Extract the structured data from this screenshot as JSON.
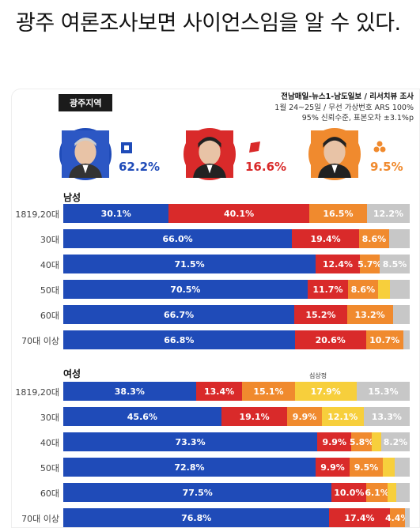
{
  "post": {
    "title": "광주 여론조사보면 사이언스임을 알 수 있다."
  },
  "graphic": {
    "region": "광주지역",
    "source_lines": [
      "전남매일-뉴스1-남도일보 / 리서치뷰 조사",
      "1월 24~25일 / 무선 가상번호 ARS 100%",
      "95% 신뢰수준, 표본오차 ±3.1%p"
    ],
    "candidates": [
      {
        "pct": "62.2%",
        "color": "#1f4bb8",
        "icon": "democratic-party-icon"
      },
      {
        "pct": "16.6%",
        "color": "#d92a2a",
        "icon": "ppp-party-icon"
      },
      {
        "pct": "9.5%",
        "color": "#f08a2e",
        "icon": "people-party-icon"
      }
    ],
    "male_label": "남성",
    "female_label": "여성",
    "sim_label": "심상정"
  },
  "chart_data": {
    "type": "bar",
    "stacked": true,
    "series_colors": [
      "#1f4bb8",
      "#d92a2a",
      "#f08a2e",
      "#f7cf3c",
      "#c7c7c7"
    ],
    "groups": [
      {
        "name": "남성",
        "rows": [
          {
            "label": "1819,20대",
            "values": [
              30.1,
              40.1,
              16.5,
              0,
              12.2
            ],
            "labels": [
              "30.1%",
              "40.1%",
              "16.5%",
              "",
              "12.2%"
            ]
          },
          {
            "label": "30대",
            "values": [
              66.0,
              19.4,
              8.6,
              0,
              6.0
            ],
            "labels": [
              "66.0%",
              "19.4%",
              "8.6%",
              "",
              ""
            ]
          },
          {
            "label": "40대",
            "values": [
              71.5,
              12.4,
              5.7,
              0,
              8.5
            ],
            "labels": [
              "71.5%",
              "12.4%",
              "5.7%",
              "",
              "8.5%"
            ]
          },
          {
            "label": "50대",
            "values": [
              70.5,
              11.7,
              8.6,
              3.4,
              5.8
            ],
            "labels": [
              "70.5%",
              "11.7%",
              "8.6%",
              "",
              ""
            ]
          },
          {
            "label": "60대",
            "values": [
              66.7,
              15.2,
              13.2,
              0,
              4.9
            ],
            "labels": [
              "66.7%",
              "15.2%",
              "13.2%",
              "",
              ""
            ]
          },
          {
            "label": "70대 이상",
            "values": [
              66.8,
              20.6,
              10.7,
              0,
              1.9
            ],
            "labels": [
              "66.8%",
              "20.6%",
              "10.7%",
              "",
              ""
            ]
          }
        ]
      },
      {
        "name": "여성",
        "rows": [
          {
            "label": "1819,20대",
            "values": [
              38.3,
              13.4,
              15.1,
              17.9,
              15.3
            ],
            "labels": [
              "38.3%",
              "13.4%",
              "15.1%",
              "17.9%",
              "15.3%"
            ]
          },
          {
            "label": "30대",
            "values": [
              45.6,
              19.1,
              9.9,
              12.1,
              13.3
            ],
            "labels": [
              "45.6%",
              "19.1%",
              "9.9%",
              "12.1%",
              "13.3%"
            ]
          },
          {
            "label": "40대",
            "values": [
              73.3,
              9.9,
              5.8,
              2.8,
              8.2
            ],
            "labels": [
              "73.3%",
              "9.9%",
              "5.8%",
              "",
              "8.2%"
            ]
          },
          {
            "label": "50대",
            "values": [
              72.8,
              9.9,
              9.5,
              3.4,
              4.4
            ],
            "labels": [
              "72.8%",
              "9.9%",
              "9.5%",
              "",
              ""
            ]
          },
          {
            "label": "60대",
            "values": [
              77.5,
              10.0,
              6.1,
              2.6,
              3.8
            ],
            "labels": [
              "77.5%",
              "10.0%",
              "6.1%",
              "",
              ""
            ]
          },
          {
            "label": "70대 이상",
            "values": [
              76.8,
              17.4,
              4.4,
              0,
              1.4
            ],
            "labels": [
              "76.8%",
              "17.4%",
              "4.4%",
              "",
              ""
            ]
          }
        ]
      }
    ]
  }
}
